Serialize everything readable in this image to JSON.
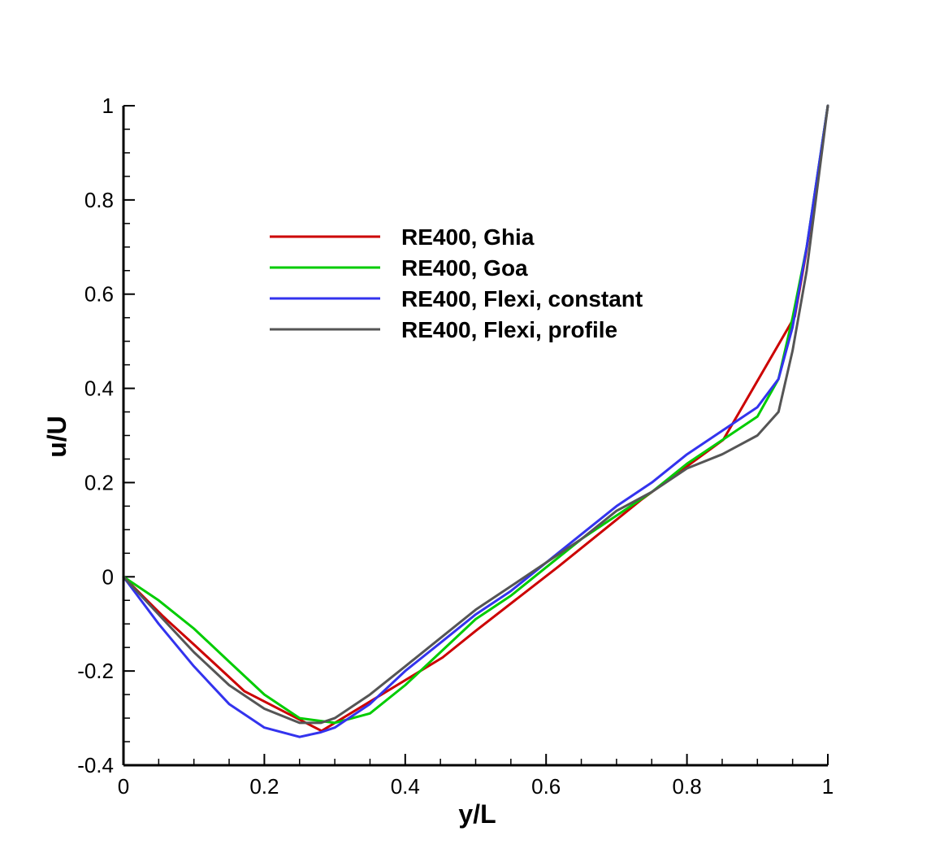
{
  "chart_data": {
    "type": "line",
    "title": "",
    "xlabel": "y/L",
    "ylabel": "u/U",
    "xlim": [
      0,
      1
    ],
    "ylim": [
      -0.4,
      1
    ],
    "xticks": [
      0,
      0.2,
      0.4,
      0.6,
      0.8,
      1
    ],
    "xtick_labels": [
      "0",
      "0.2",
      "0.4",
      "0.6",
      "0.8",
      "1"
    ],
    "yticks": [
      -0.4,
      -0.2,
      0,
      0.2,
      0.4,
      0.6,
      0.8,
      1
    ],
    "ytick_labels": [
      "-0.4",
      "-0.2",
      "0",
      "0.2",
      "0.4",
      "0.6",
      "0.8",
      "1"
    ],
    "grid": false,
    "legend_position": "upper-left-center",
    "series": [
      {
        "name": "RE400, Ghia",
        "color": "#cc0000",
        "x": [
          0,
          0.0547,
          0.0625,
          0.0703,
          0.1016,
          0.1719,
          0.2813,
          0.4531,
          0.5,
          0.6172,
          0.7344,
          0.8516,
          0.9531,
          0.9609,
          0.9688,
          0.9766,
          1
        ],
        "y": [
          0,
          -0.0817,
          -0.0927,
          -0.1034,
          -0.1461,
          -0.243,
          -0.3271,
          -0.1712,
          -0.1148,
          0.0214,
          0.1626,
          0.2909,
          0.5523,
          0.6174,
          0.6842,
          0.7584,
          1
        ]
      },
      {
        "name": "RE400, Goa",
        "color": "#00cc00",
        "x": [
          0,
          0.05,
          0.1,
          0.15,
          0.2,
          0.25,
          0.3,
          0.35,
          0.4,
          0.45,
          0.5,
          0.55,
          0.6,
          0.65,
          0.7,
          0.75,
          0.8,
          0.85,
          0.9,
          0.93,
          0.95,
          0.97,
          1
        ],
        "y": [
          0,
          -0.05,
          -0.11,
          -0.18,
          -0.25,
          -0.3,
          -0.31,
          -0.29,
          -0.23,
          -0.16,
          -0.09,
          -0.04,
          0.02,
          0.08,
          0.13,
          0.18,
          0.24,
          0.29,
          0.34,
          0.42,
          0.55,
          0.7,
          1
        ]
      },
      {
        "name": "RE400, Flexi, constant",
        "color": "#3333ee",
        "x": [
          0,
          0.05,
          0.1,
          0.15,
          0.2,
          0.25,
          0.28,
          0.3,
          0.35,
          0.4,
          0.45,
          0.5,
          0.55,
          0.6,
          0.65,
          0.7,
          0.75,
          0.8,
          0.85,
          0.9,
          0.93,
          0.95,
          0.97,
          1
        ],
        "y": [
          0,
          -0.1,
          -0.19,
          -0.27,
          -0.32,
          -0.34,
          -0.33,
          -0.32,
          -0.27,
          -0.2,
          -0.14,
          -0.08,
          -0.03,
          0.03,
          0.09,
          0.15,
          0.2,
          0.26,
          0.31,
          0.36,
          0.42,
          0.53,
          0.7,
          1
        ]
      },
      {
        "name": "RE400, Flexi, profile",
        "color": "#555555",
        "x": [
          0,
          0.05,
          0.1,
          0.15,
          0.2,
          0.25,
          0.28,
          0.3,
          0.35,
          0.4,
          0.45,
          0.5,
          0.55,
          0.6,
          0.65,
          0.7,
          0.75,
          0.8,
          0.85,
          0.9,
          0.93,
          0.95,
          0.97,
          1
        ],
        "y": [
          0,
          -0.08,
          -0.16,
          -0.23,
          -0.28,
          -0.31,
          -0.31,
          -0.3,
          -0.25,
          -0.19,
          -0.13,
          -0.07,
          -0.02,
          0.03,
          0.08,
          0.14,
          0.18,
          0.23,
          0.26,
          0.3,
          0.35,
          0.48,
          0.65,
          1
        ]
      }
    ]
  }
}
